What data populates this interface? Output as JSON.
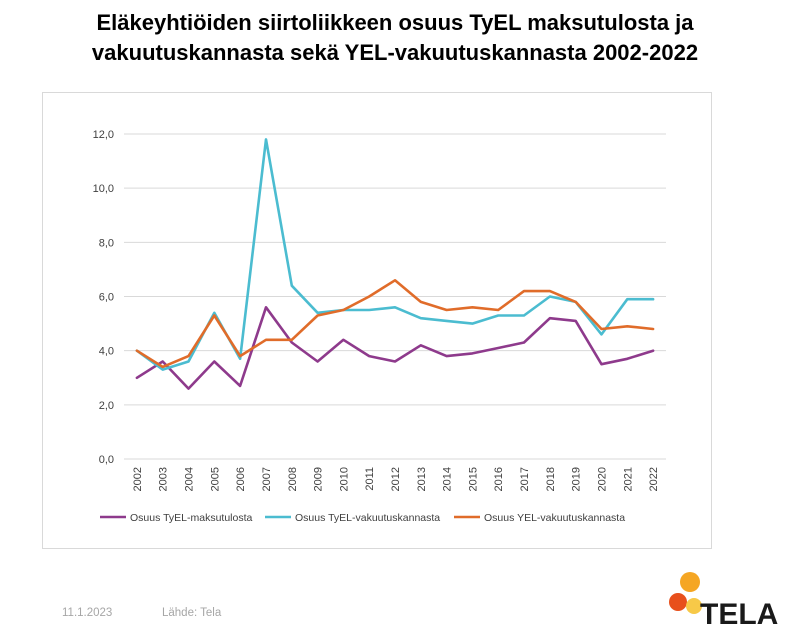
{
  "title": {
    "line1": "Eläkeyhtiöiden siirtoliikkeen osuus TyEL maksutulosta ja",
    "line2": "vakuutuskannasta sekä YEL-vakuutuskannasta 2002-2022"
  },
  "footer": {
    "date": "11.1.2023",
    "source": "Lähde: Tela"
  },
  "logo": {
    "text": "TELA",
    "colors": [
      "#f5a623",
      "#e8501c",
      "#f7c948"
    ]
  },
  "chart_data": {
    "type": "line",
    "categories": [
      "2002",
      "2003",
      "2004",
      "2005",
      "2006",
      "2007",
      "2008",
      "2009",
      "2010",
      "2011",
      "2012",
      "2013",
      "2014",
      "2015",
      "2016",
      "2017",
      "2018",
      "2019",
      "2020",
      "2021",
      "2022"
    ],
    "ylim": [
      0,
      12
    ],
    "yticks": [
      "0,0",
      "2,0",
      "4,0",
      "6,0",
      "8,0",
      "10,0",
      "12,0"
    ],
    "ytick_values": [
      0,
      2,
      4,
      6,
      8,
      10,
      12
    ],
    "grid": true,
    "legend_position": "bottom",
    "series": [
      {
        "name": "Osuus TyEL-maksutulosta",
        "color": "#8e3a8c",
        "values": [
          3.0,
          3.6,
          2.6,
          3.6,
          2.7,
          5.6,
          4.3,
          3.6,
          4.4,
          3.8,
          3.6,
          4.2,
          3.8,
          3.9,
          4.1,
          4.3,
          5.2,
          5.1,
          3.5,
          3.7,
          4.0
        ]
      },
      {
        "name": "Osuus TyEL-vakuutuskannasta",
        "color": "#4bbcd0",
        "values": [
          4.0,
          3.3,
          3.6,
          5.4,
          3.7,
          11.8,
          6.4,
          5.4,
          5.5,
          5.5,
          5.6,
          5.2,
          5.1,
          5.0,
          5.3,
          5.3,
          6.0,
          5.8,
          4.6,
          5.9,
          5.9
        ]
      },
      {
        "name": "Osuus YEL-vakuutuskannasta",
        "color": "#e06c2a",
        "values": [
          4.0,
          3.4,
          3.8,
          5.3,
          3.8,
          4.4,
          4.4,
          5.3,
          5.5,
          6.0,
          6.6,
          5.8,
          5.5,
          5.6,
          5.5,
          6.2,
          6.2,
          5.8,
          4.8,
          4.9,
          4.8
        ]
      }
    ]
  }
}
